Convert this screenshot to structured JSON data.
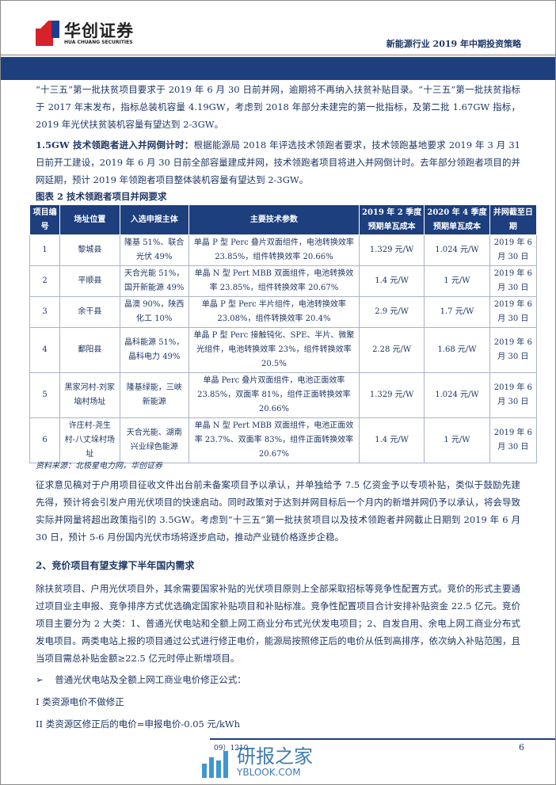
{
  "header": {
    "logo_cn": "华创证券",
    "logo_en": "HUA CHUANG SECURITIES",
    "title": "新能源行业 2019 年中期投资策略"
  },
  "para1": "“十三五”第一批扶贫项目要求于 2019 年 6 月 30 日前并网，逾期将不再纳入扶贫补贴目录。“十三五”第一批扶贫指标于 2017 年末发布，指标总装机容量 4.19GW，考虑到 2018 年部分未建完的第一批指标，及第二批 1.67GW 指标，2019 年光伏扶贫装机容量有望达到 2-3GW。",
  "para2": {
    "lead": "1.5GW 技术领跑者进入并网倒计时：",
    "text": "根据能源局 2018 年评选技术领跑者要求，技术领跑基地要求 2019 年 3 月 31 日前开工建设，2019 年 6 月 30 日前全部容量建成并网，技术领跑者项目将进入并网倒计时。去年部分领跑者项目的并网延期，预计 2019 年领跑者项目整体装机容量有望达到 2-3GW。"
  },
  "table": {
    "caption": "图表 2   技术领跑者项目并网要求",
    "headers": [
      "项目编号",
      "场址位置",
      "入选申报主体",
      "主要技术参数",
      "2019 年 2 季度预期单瓦成本",
      "2020 年 4 季度预期单瓦成本",
      "并网截至日期"
    ],
    "rows": [
      [
        "1",
        "黎城县",
        "隆基 51%、联合光伏 49%",
        "单晶 P 型 Perc 叠片双面组件，电池转换效率 23.85%，组件转换效率 20.66%",
        "1.329 元/W",
        "1.024 元/W",
        "2019 年 6 月 30 日"
      ],
      [
        "2",
        "平顺县",
        "天合光能 51%，国开新能源 49%",
        "单晶 N 型 Pert MBB 双面组件，电池转换效率 23.85%，组件转换效率 20.67%",
        "1.4 元/W",
        "1 元/W",
        "2019 年 6 月 30 日"
      ],
      [
        "3",
        "余干县",
        "晶澳 90%，陕西化工 10%",
        "单晶 P 型 Perc 半片组件，电池转换效率 23.08%，组件转换效率 20.4%",
        "2.9 元/W",
        "1.7 元/W",
        "2019 年 6 月 30 日"
      ],
      [
        "4",
        "鄱阳县",
        "晶科能源 51%，晶科电力 49%",
        "单晶 P 型 Perc 接触钝化、SPE、半片、微聚光组件，电池转换效率 23%，组件转换效率 20.5%",
        "2.28 元/W",
        "1.68 元/W",
        "2019 年 6 月 30 日"
      ],
      [
        "5",
        "黑家河村-刘家垴村场址",
        "隆基绿能，三峡新能源",
        "单晶 Perc 叠片双面组件，电池正面效率 23.85%，双面率 81%，组件正面转换效率 20.66%",
        "1.329 元/W",
        "1.024 元/W",
        "2019 年 6 月 30 日"
      ],
      [
        "6",
        "许庄村-尧生村-八丈垛村场址",
        "天合光能、湖南兴业绿色能源",
        "单晶 N 型 Pert MBB 双面组件，电池正面效率 23.7%、双面率 83%，组件正面转换效率 20.67%",
        "1.4 元/W",
        "1 元/W",
        "2019 年 6 月 30 日"
      ]
    ],
    "source": "资料来源：北极星电力网，华创证券"
  },
  "para3": "征求意见稿对于户用项目征收文件出台前未备案项目予以承认，并单独给予 7.5 亿资金予以专项补贴，类似于鼓励先建先得，预计将会引发户用光伏项目的快速启动。同时政策对于达到并网目标后一个月内的新增并网仍予以承认，将会导致实际并网量将超出政策指引的 3.5GW。考虑到“十三五”第一批扶贫项目以及技术领跑者并网截止日期到 2019 年 6 月 30 日，预计 5-6 月份国内光伏市场将逐步启动，推动产业链价格逐步企稳。",
  "heading2": "2、竞价项目有望支撑下半年国内需求",
  "para4": "除扶贫项目、户用光伏项目外，其余需要国家补贴的光伏项目原则上全部采取招标等竞争性配置方式。竞价的形式主要通过项目业主申报、竞争排序方式优选确定国家补贴项目和补贴标准。竞争性配置项目合计安排补贴资金 22.5 亿元。竞价项目主要分为 2 大类：1、普通光伏电站和全额上网工商业分布式光伏发电项目；2、自发自用、余电上网工商业分布式发电项目。两类电站上报的项目通过公式进行修正电价，能源局按照修正后的电价从低到高排序，依次纳入补贴范围，且当项目需总补贴金额≥22.5 亿元时停止新增项目。",
  "bullet": {
    "marker": "➢",
    "text": "普通光伏电站及全额上网工商业电价修正公式："
  },
  "line1": "I 类资源电价不做修正",
  "line2": "II 类资源区修正后的电价=申报电价-0.05 元/kWh",
  "footer": {
    "fragment": "09）1210",
    "page": "6"
  },
  "watermark": {
    "cn": "研报之家",
    "en": "YBLOOK.COM"
  }
}
